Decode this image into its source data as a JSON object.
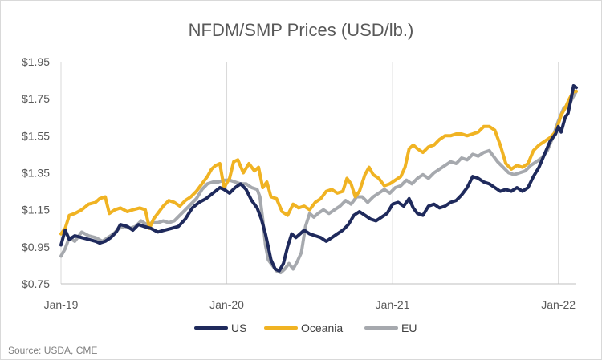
{
  "chart_data": {
    "type": "line",
    "title": "NFDM/SMP Prices (USD/lb.)",
    "xlabel": "",
    "ylabel": "",
    "source": "Source: USDA, CME",
    "x_range": [
      "2019-01",
      "2022-02"
    ],
    "ylim": [
      0.75,
      1.95
    ],
    "y_ticks": [
      {
        "label": "$1.95",
        "value": 1.95
      },
      {
        "label": "$1.75",
        "value": 1.75
      },
      {
        "label": "$1.55",
        "value": 1.55
      },
      {
        "label": "$1.35",
        "value": 1.35
      },
      {
        "label": "$1.15",
        "value": 1.15
      },
      {
        "label": "$0.95",
        "value": 0.95
      },
      {
        "label": "$0.75",
        "value": 0.75
      }
    ],
    "x_ticks": [
      {
        "label": "Jan-19",
        "month": 0
      },
      {
        "label": "Jan-20",
        "month": 12
      },
      {
        "label": "Jan-21",
        "month": 24
      },
      {
        "label": "Jan-22",
        "month": 36
      }
    ],
    "grid": "vertical",
    "legend_position": "bottom",
    "series": [
      {
        "name": "US",
        "color": "#1f2a5c",
        "points": [
          [
            0.0,
            0.96
          ],
          [
            0.3,
            1.04
          ],
          [
            0.6,
            0.99
          ],
          [
            1.0,
            1.01
          ],
          [
            1.5,
            1.0
          ],
          [
            2.0,
            0.99
          ],
          [
            2.5,
            0.98
          ],
          [
            2.8,
            0.97
          ],
          [
            3.2,
            0.98
          ],
          [
            3.6,
            1.0
          ],
          [
            4.0,
            1.03
          ],
          [
            4.3,
            1.07
          ],
          [
            4.8,
            1.06
          ],
          [
            5.2,
            1.04
          ],
          [
            5.6,
            1.07
          ],
          [
            6.0,
            1.06
          ],
          [
            6.5,
            1.05
          ],
          [
            7.0,
            1.03
          ],
          [
            7.5,
            1.04
          ],
          [
            8.0,
            1.05
          ],
          [
            8.5,
            1.06
          ],
          [
            9.0,
            1.1
          ],
          [
            9.5,
            1.16
          ],
          [
            10.0,
            1.19
          ],
          [
            10.5,
            1.21
          ],
          [
            11.0,
            1.24
          ],
          [
            11.5,
            1.27
          ],
          [
            11.8,
            1.26
          ],
          [
            12.2,
            1.24
          ],
          [
            12.6,
            1.27
          ],
          [
            13.0,
            1.29
          ],
          [
            13.4,
            1.26
          ],
          [
            13.8,
            1.2
          ],
          [
            14.2,
            1.16
          ],
          [
            14.5,
            1.1
          ],
          [
            14.8,
            1.02
          ],
          [
            15.0,
            0.95
          ],
          [
            15.2,
            0.88
          ],
          [
            15.5,
            0.83
          ],
          [
            15.8,
            0.82
          ],
          [
            16.1,
            0.86
          ],
          [
            16.4,
            0.95
          ],
          [
            16.7,
            1.02
          ],
          [
            17.0,
            1.0
          ],
          [
            17.3,
            1.02
          ],
          [
            17.6,
            1.04
          ],
          [
            18.0,
            1.02
          ],
          [
            18.4,
            1.01
          ],
          [
            18.8,
            1.0
          ],
          [
            19.2,
            0.98
          ],
          [
            19.6,
            1.0
          ],
          [
            20.0,
            1.02
          ],
          [
            20.4,
            1.04
          ],
          [
            20.8,
            1.07
          ],
          [
            21.2,
            1.12
          ],
          [
            21.6,
            1.14
          ],
          [
            22.0,
            1.12
          ],
          [
            22.4,
            1.1
          ],
          [
            22.8,
            1.09
          ],
          [
            23.2,
            1.11
          ],
          [
            23.6,
            1.13
          ],
          [
            24.0,
            1.18
          ],
          [
            24.4,
            1.19
          ],
          [
            24.8,
            1.17
          ],
          [
            25.2,
            1.21
          ],
          [
            25.5,
            1.16
          ],
          [
            25.8,
            1.13
          ],
          [
            26.2,
            1.12
          ],
          [
            26.6,
            1.17
          ],
          [
            27.0,
            1.18
          ],
          [
            27.4,
            1.16
          ],
          [
            27.8,
            1.17
          ],
          [
            28.2,
            1.19
          ],
          [
            28.6,
            1.2
          ],
          [
            29.0,
            1.23
          ],
          [
            29.4,
            1.27
          ],
          [
            29.8,
            1.33
          ],
          [
            30.2,
            1.32
          ],
          [
            30.6,
            1.3
          ],
          [
            31.0,
            1.29
          ],
          [
            31.4,
            1.27
          ],
          [
            31.8,
            1.25
          ],
          [
            32.2,
            1.26
          ],
          [
            32.6,
            1.25
          ],
          [
            33.0,
            1.27
          ],
          [
            33.4,
            1.25
          ],
          [
            33.8,
            1.27
          ],
          [
            34.2,
            1.33
          ],
          [
            34.6,
            1.38
          ],
          [
            35.0,
            1.45
          ],
          [
            35.4,
            1.52
          ],
          [
            35.8,
            1.56
          ],
          [
            36.0,
            1.6
          ],
          [
            36.2,
            1.57
          ],
          [
            36.5,
            1.65
          ],
          [
            36.7,
            1.67
          ],
          [
            36.9,
            1.74
          ],
          [
            37.1,
            1.82
          ],
          [
            37.3,
            1.81
          ]
        ]
      },
      {
        "name": "Oceania",
        "color": "#f0b323",
        "points": [
          [
            0.0,
            1.02
          ],
          [
            0.3,
            1.05
          ],
          [
            0.6,
            1.12
          ],
          [
            1.0,
            1.13
          ],
          [
            1.5,
            1.15
          ],
          [
            2.0,
            1.18
          ],
          [
            2.5,
            1.19
          ],
          [
            2.8,
            1.21
          ],
          [
            3.2,
            1.22
          ],
          [
            3.5,
            1.13
          ],
          [
            3.9,
            1.15
          ],
          [
            4.3,
            1.16
          ],
          [
            4.8,
            1.14
          ],
          [
            5.2,
            1.15
          ],
          [
            5.7,
            1.16
          ],
          [
            6.1,
            1.15
          ],
          [
            6.4,
            1.05
          ],
          [
            6.7,
            1.1
          ],
          [
            7.0,
            1.13
          ],
          [
            7.4,
            1.17
          ],
          [
            7.8,
            1.2
          ],
          [
            8.2,
            1.19
          ],
          [
            8.6,
            1.17
          ],
          [
            9.0,
            1.2
          ],
          [
            9.4,
            1.22
          ],
          [
            9.8,
            1.25
          ],
          [
            10.2,
            1.29
          ],
          [
            10.6,
            1.33
          ],
          [
            10.9,
            1.37
          ],
          [
            11.2,
            1.39
          ],
          [
            11.5,
            1.4
          ],
          [
            11.8,
            1.27
          ],
          [
            12.2,
            1.32
          ],
          [
            12.5,
            1.41
          ],
          [
            12.8,
            1.42
          ],
          [
            13.2,
            1.35
          ],
          [
            13.6,
            1.4
          ],
          [
            14.0,
            1.36
          ],
          [
            14.3,
            1.38
          ],
          [
            14.6,
            1.27
          ],
          [
            14.9,
            1.3
          ],
          [
            15.2,
            1.22
          ],
          [
            15.6,
            1.21
          ],
          [
            16.0,
            1.14
          ],
          [
            16.4,
            1.12
          ],
          [
            16.8,
            1.18
          ],
          [
            17.2,
            1.16
          ],
          [
            17.6,
            1.17
          ],
          [
            18.0,
            1.15
          ],
          [
            18.4,
            1.19
          ],
          [
            18.8,
            1.21
          ],
          [
            19.2,
            1.25
          ],
          [
            19.6,
            1.26
          ],
          [
            20.0,
            1.24
          ],
          [
            20.4,
            1.25
          ],
          [
            20.7,
            1.32
          ],
          [
            21.0,
            1.29
          ],
          [
            21.3,
            1.22
          ],
          [
            21.6,
            1.25
          ],
          [
            22.0,
            1.34
          ],
          [
            22.3,
            1.38
          ],
          [
            22.6,
            1.34
          ],
          [
            23.0,
            1.32
          ],
          [
            23.4,
            1.28
          ],
          [
            23.8,
            1.29
          ],
          [
            24.2,
            1.31
          ],
          [
            24.6,
            1.33
          ],
          [
            24.9,
            1.38
          ],
          [
            25.2,
            1.48
          ],
          [
            25.5,
            1.5
          ],
          [
            25.8,
            1.48
          ],
          [
            26.2,
            1.46
          ],
          [
            26.6,
            1.49
          ],
          [
            27.0,
            1.5
          ],
          [
            27.4,
            1.53
          ],
          [
            27.8,
            1.55
          ],
          [
            28.2,
            1.55
          ],
          [
            28.6,
            1.56
          ],
          [
            29.0,
            1.56
          ],
          [
            29.4,
            1.55
          ],
          [
            29.8,
            1.56
          ],
          [
            30.2,
            1.57
          ],
          [
            30.6,
            1.6
          ],
          [
            31.0,
            1.6
          ],
          [
            31.4,
            1.58
          ],
          [
            31.8,
            1.5
          ],
          [
            32.2,
            1.4
          ],
          [
            32.6,
            1.37
          ],
          [
            33.0,
            1.39
          ],
          [
            33.4,
            1.38
          ],
          [
            33.8,
            1.4
          ],
          [
            34.2,
            1.47
          ],
          [
            34.6,
            1.5
          ],
          [
            35.0,
            1.52
          ],
          [
            35.4,
            1.54
          ],
          [
            35.8,
            1.57
          ],
          [
            36.2,
            1.66
          ],
          [
            36.5,
            1.7
          ],
          [
            36.8,
            1.75
          ],
          [
            37.1,
            1.79
          ],
          [
            37.3,
            1.79
          ]
        ]
      },
      {
        "name": "EU",
        "color": "#a6a9ae",
        "points": [
          [
            0.0,
            0.9
          ],
          [
            0.3,
            0.94
          ],
          [
            0.6,
            1.0
          ],
          [
            1.0,
            0.98
          ],
          [
            1.5,
            1.03
          ],
          [
            2.0,
            1.01
          ],
          [
            2.5,
            1.0
          ],
          [
            3.0,
            0.98
          ],
          [
            3.4,
            1.0
          ],
          [
            3.8,
            1.02
          ],
          [
            4.2,
            1.05
          ],
          [
            4.6,
            1.06
          ],
          [
            5.0,
            1.05
          ],
          [
            5.4,
            1.06
          ],
          [
            5.8,
            1.09
          ],
          [
            6.2,
            1.07
          ],
          [
            6.6,
            1.08
          ],
          [
            7.0,
            1.08
          ],
          [
            7.4,
            1.09
          ],
          [
            7.8,
            1.08
          ],
          [
            8.2,
            1.09
          ],
          [
            8.6,
            1.12
          ],
          [
            9.0,
            1.15
          ],
          [
            9.4,
            1.18
          ],
          [
            9.8,
            1.21
          ],
          [
            10.2,
            1.26
          ],
          [
            10.6,
            1.29
          ],
          [
            11.0,
            1.3
          ],
          [
            11.4,
            1.3
          ],
          [
            11.8,
            1.31
          ],
          [
            12.2,
            1.31
          ],
          [
            12.6,
            1.3
          ],
          [
            13.0,
            1.29
          ],
          [
            13.4,
            1.29
          ],
          [
            13.8,
            1.27
          ],
          [
            14.2,
            1.26
          ],
          [
            14.4,
            1.22
          ],
          [
            14.6,
            1.1
          ],
          [
            14.8,
            0.96
          ],
          [
            15.0,
            0.88
          ],
          [
            15.3,
            0.85
          ],
          [
            15.6,
            0.82
          ],
          [
            15.9,
            0.81
          ],
          [
            16.2,
            0.83
          ],
          [
            16.5,
            0.86
          ],
          [
            16.8,
            0.83
          ],
          [
            17.1,
            0.87
          ],
          [
            17.4,
            0.92
          ],
          [
            17.7,
            1.06
          ],
          [
            18.0,
            1.13
          ],
          [
            18.3,
            1.11
          ],
          [
            18.6,
            1.13
          ],
          [
            19.0,
            1.15
          ],
          [
            19.4,
            1.13
          ],
          [
            19.8,
            1.15
          ],
          [
            20.2,
            1.17
          ],
          [
            20.6,
            1.2
          ],
          [
            21.0,
            1.18
          ],
          [
            21.4,
            1.22
          ],
          [
            21.8,
            1.22
          ],
          [
            22.2,
            1.19
          ],
          [
            22.6,
            1.22
          ],
          [
            23.0,
            1.24
          ],
          [
            23.4,
            1.26
          ],
          [
            23.8,
            1.24
          ],
          [
            24.2,
            1.27
          ],
          [
            24.6,
            1.28
          ],
          [
            25.0,
            1.31
          ],
          [
            25.4,
            1.29
          ],
          [
            25.8,
            1.32
          ],
          [
            26.2,
            1.34
          ],
          [
            26.6,
            1.32
          ],
          [
            27.0,
            1.35
          ],
          [
            27.4,
            1.37
          ],
          [
            27.8,
            1.39
          ],
          [
            28.2,
            1.41
          ],
          [
            28.6,
            1.4
          ],
          [
            29.0,
            1.43
          ],
          [
            29.4,
            1.42
          ],
          [
            29.8,
            1.45
          ],
          [
            30.2,
            1.44
          ],
          [
            30.6,
            1.46
          ],
          [
            31.0,
            1.47
          ],
          [
            31.3,
            1.44
          ],
          [
            31.6,
            1.41
          ],
          [
            32.0,
            1.38
          ],
          [
            32.4,
            1.35
          ],
          [
            32.8,
            1.34
          ],
          [
            33.2,
            1.35
          ],
          [
            33.6,
            1.36
          ],
          [
            34.0,
            1.39
          ],
          [
            34.4,
            1.41
          ],
          [
            34.8,
            1.43
          ],
          [
            35.2,
            1.47
          ],
          [
            35.6,
            1.54
          ],
          [
            36.0,
            1.63
          ],
          [
            36.4,
            1.7
          ],
          [
            36.8,
            1.72
          ],
          [
            37.0,
            1.75
          ],
          [
            37.3,
            1.79
          ]
        ]
      }
    ]
  }
}
